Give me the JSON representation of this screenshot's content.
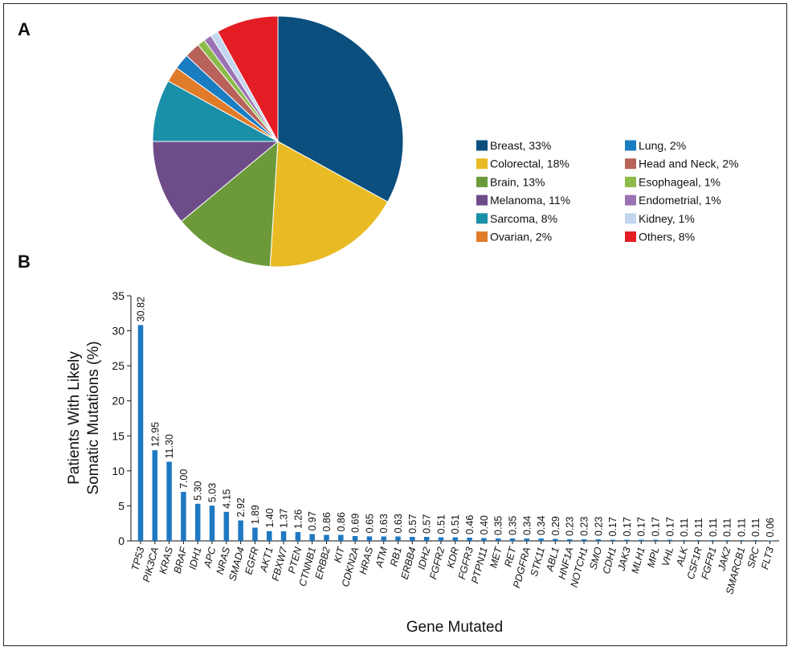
{
  "chart_data": [
    {
      "panel_label": "A",
      "type": "pie",
      "start_angle_deg": 0,
      "direction": "clockwise",
      "slices": [
        {
          "label": "Breast, 33%",
          "value": 33,
          "color": "#0a4f7e"
        },
        {
          "label": "Colorectal, 18%",
          "value": 18,
          "color": "#e8bb24"
        },
        {
          "label": "Brain, 13%",
          "value": 13,
          "color": "#6c9a3a"
        },
        {
          "label": "Melanoma, 11%",
          "value": 11,
          "color": "#6e4c8a"
        },
        {
          "label": "Sarcoma, 8%",
          "value": 8,
          "color": "#1a8fa8"
        },
        {
          "label": "Ovarian, 2%",
          "value": 2,
          "color": "#e07b2a"
        },
        {
          "label": "Lung, 2%",
          "value": 2,
          "color": "#1a7cc1"
        },
        {
          "label": "Head and Neck, 2%",
          "value": 2,
          "color": "#b8625a"
        },
        {
          "label": "Esophageal, 1%",
          "value": 1,
          "color": "#8cbb4a"
        },
        {
          "label": "Endometrial, 1%",
          "value": 1,
          "color": "#9b73b4"
        },
        {
          "label": "Kidney, 1%",
          "value": 1,
          "color": "#c3d6ef"
        },
        {
          "label": "Others, 8%",
          "value": 8,
          "color": "#e41d24"
        }
      ],
      "legend_placement": "right",
      "legend_columns": 2
    },
    {
      "panel_label": "B",
      "type": "bar",
      "bar_color": "#1f78c1",
      "categories": [
        "TP53",
        "PIK3CA",
        "KRAS",
        "BRAF",
        "IDH1",
        "APC",
        "NRAS",
        "SMAD4",
        "EGFR",
        "AKT1",
        "FBXW7",
        "PTEN",
        "CTNNB1",
        "ERBB2",
        "KIT",
        "CDKN2A",
        "HRAS",
        "ATM",
        "RB1",
        "ERBB4",
        "IDH2",
        "FGFR2",
        "KDR",
        "FGFR3",
        "PTPN11",
        "MET",
        "RET",
        "PDGFRA",
        "STK11",
        "ABL1",
        "HNF1A",
        "NOTCH1",
        "SMO",
        "CDH1",
        "JAK3",
        "MLH1",
        "MPL",
        "VHL",
        "ALK",
        "CSF1R",
        "FGFR1",
        "JAK2",
        "SMARCB1",
        "SRC",
        "FLT3"
      ],
      "values": [
        30.82,
        12.95,
        11.3,
        7.0,
        5.3,
        5.03,
        4.15,
        2.92,
        1.89,
        1.4,
        1.37,
        1.26,
        0.97,
        0.86,
        0.86,
        0.69,
        0.65,
        0.63,
        0.63,
        0.57,
        0.57,
        0.51,
        0.51,
        0.46,
        0.4,
        0.35,
        0.35,
        0.34,
        0.34,
        0.29,
        0.23,
        0.23,
        0.23,
        0.17,
        0.17,
        0.17,
        0.17,
        0.17,
        0.11,
        0.11,
        0.11,
        0.11,
        0.11,
        0.11,
        0.06
      ],
      "value_labels": [
        "30.82",
        "12.95",
        "11.30",
        "7.00",
        "5.30",
        "5.03",
        "4.15",
        "2.92",
        "1.89",
        "1.40",
        "1.37",
        "1.26",
        "0.97",
        "0.86",
        "0.86",
        "0.69",
        "0.65",
        "0.63",
        "0.63",
        "0.57",
        "0.57",
        "0.51",
        "0.51",
        "0.46",
        "0.40",
        "0.35",
        "0.35",
        "0.34",
        "0.34",
        "0.29",
        "0.23",
        "0.23",
        "0.23",
        "0.17",
        "0.17",
        "0.17",
        "0.17",
        "0.17",
        "0.11",
        "0.11",
        "0.11",
        "0.11",
        "0.11",
        "0.11",
        "0.06"
      ],
      "xlabel": "Gene Mutated",
      "ylabel_lines": [
        "Patients With Likely",
        "Somatic Mutations (%)"
      ],
      "ylim": [
        0,
        35
      ],
      "yticks": [
        0,
        5,
        10,
        15,
        20,
        25,
        30,
        35
      ],
      "grid": false
    }
  ]
}
